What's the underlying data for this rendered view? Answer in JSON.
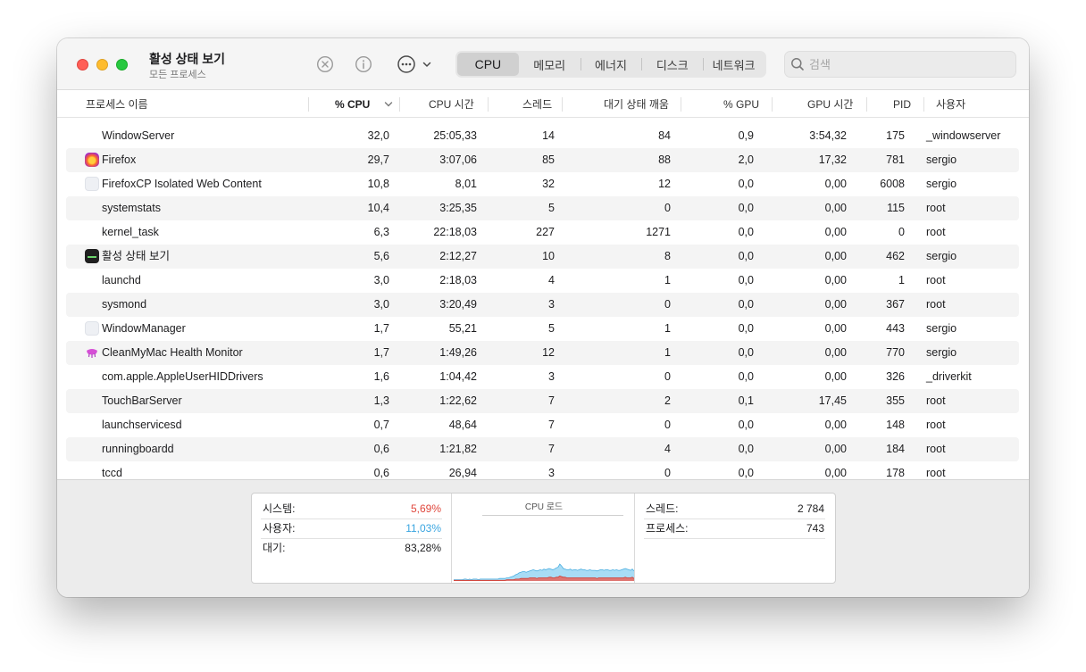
{
  "window": {
    "title": "활성 상태 보기",
    "subtitle": "모든 프로세스"
  },
  "toolbar": {
    "stop_icon": "x-circle-icon",
    "info_icon": "info-circle-icon",
    "more_icon": "ellipsis-circle-icon",
    "tabs": [
      {
        "label": "CPU",
        "active": true
      },
      {
        "label": "메모리",
        "active": false
      },
      {
        "label": "에너지",
        "active": false
      },
      {
        "label": "디스크",
        "active": false
      },
      {
        "label": "네트워크",
        "active": false
      }
    ],
    "search": {
      "placeholder": "검색",
      "value": ""
    }
  },
  "columns": {
    "name": "프로세스 이름",
    "cpu": "% CPU",
    "cpu_time": "CPU 시간",
    "threads": "스레드",
    "idle_wakeups": "대기 상태 깨움",
    "gpu": "% GPU",
    "gpu_time": "GPU 시간",
    "pid": "PID",
    "user": "사용자"
  },
  "processes": [
    {
      "name": "WindowServer",
      "icon": "none",
      "cpu": "32,0",
      "cpu_time": "25:05,33",
      "threads": "14",
      "wakeups": "84",
      "gpu": "0,9",
      "gpu_time": "3:54,32",
      "pid": "175",
      "user": "_windowserver"
    },
    {
      "name": "Firefox",
      "icon": "firefox",
      "cpu": "29,7",
      "cpu_time": "3:07,06",
      "threads": "85",
      "wakeups": "88",
      "gpu": "2,0",
      "gpu_time": "17,32",
      "pid": "781",
      "user": "sergio"
    },
    {
      "name": "FirefoxCP Isolated Web Content",
      "icon": "blank",
      "cpu": "10,8",
      "cpu_time": "8,01",
      "threads": "32",
      "wakeups": "12",
      "gpu": "0,0",
      "gpu_time": "0,00",
      "pid": "6008",
      "user": "sergio"
    },
    {
      "name": "systemstats",
      "icon": "none",
      "cpu": "10,4",
      "cpu_time": "3:25,35",
      "threads": "5",
      "wakeups": "0",
      "gpu": "0,0",
      "gpu_time": "0,00",
      "pid": "115",
      "user": "root"
    },
    {
      "name": "kernel_task",
      "icon": "none",
      "cpu": "6,3",
      "cpu_time": "22:18,03",
      "threads": "227",
      "wakeups": "1271",
      "gpu": "0,0",
      "gpu_time": "0,00",
      "pid": "0",
      "user": "root"
    },
    {
      "name": "활성 상태 보기",
      "icon": "activity-monitor",
      "cpu": "5,6",
      "cpu_time": "2:12,27",
      "threads": "10",
      "wakeups": "8",
      "gpu": "0,0",
      "gpu_time": "0,00",
      "pid": "462",
      "user": "sergio"
    },
    {
      "name": "launchd",
      "icon": "none",
      "cpu": "3,0",
      "cpu_time": "2:18,03",
      "threads": "4",
      "wakeups": "1",
      "gpu": "0,0",
      "gpu_time": "0,00",
      "pid": "1",
      "user": "root"
    },
    {
      "name": "sysmond",
      "icon": "none",
      "cpu": "3,0",
      "cpu_time": "3:20,49",
      "threads": "3",
      "wakeups": "0",
      "gpu": "0,0",
      "gpu_time": "0,00",
      "pid": "367",
      "user": "root"
    },
    {
      "name": "WindowManager",
      "icon": "blank",
      "cpu": "1,7",
      "cpu_time": "55,21",
      "threads": "5",
      "wakeups": "1",
      "gpu": "0,0",
      "gpu_time": "0,00",
      "pid": "443",
      "user": "sergio"
    },
    {
      "name": "CleanMyMac Health Monitor",
      "icon": "cleanmymac",
      "cpu": "1,7",
      "cpu_time": "1:49,26",
      "threads": "12",
      "wakeups": "1",
      "gpu": "0,0",
      "gpu_time": "0,00",
      "pid": "770",
      "user": "sergio"
    },
    {
      "name": "com.apple.AppleUserHIDDrivers",
      "icon": "none",
      "cpu": "1,6",
      "cpu_time": "1:04,42",
      "threads": "3",
      "wakeups": "0",
      "gpu": "0,0",
      "gpu_time": "0,00",
      "pid": "326",
      "user": "_driverkit"
    },
    {
      "name": "TouchBarServer",
      "icon": "none",
      "cpu": "1,3",
      "cpu_time": "1:22,62",
      "threads": "7",
      "wakeups": "2",
      "gpu": "0,1",
      "gpu_time": "17,45",
      "pid": "355",
      "user": "root"
    },
    {
      "name": "launchservicesd",
      "icon": "none",
      "cpu": "0,7",
      "cpu_time": "48,64",
      "threads": "7",
      "wakeups": "0",
      "gpu": "0,0",
      "gpu_time": "0,00",
      "pid": "148",
      "user": "root"
    },
    {
      "name": "runningboardd",
      "icon": "none",
      "cpu": "0,6",
      "cpu_time": "1:21,82",
      "threads": "7",
      "wakeups": "4",
      "gpu": "0,0",
      "gpu_time": "0,00",
      "pid": "184",
      "user": "root"
    },
    {
      "name": "tccd",
      "icon": "none",
      "cpu": "0,6",
      "cpu_time": "26,94",
      "threads": "3",
      "wakeups": "0",
      "gpu": "0,0",
      "gpu_time": "0,00",
      "pid": "178",
      "user": "root"
    }
  ],
  "summary": {
    "system_label": "시스템:",
    "system_value": "5,69%",
    "system_color": "#e0473c",
    "user_label": "사용자:",
    "user_value": "11,03%",
    "user_color": "#3aa5e0",
    "idle_label": "대기:",
    "idle_value": "83,28%",
    "graph_title": "CPU 로드",
    "threads_label": "스레드:",
    "threads_value": "2 784",
    "processes_label": "프로세스:",
    "processes_value": "743"
  },
  "chart_data": {
    "type": "area",
    "series": [
      {
        "values": [
          2,
          2,
          2,
          2,
          2,
          2,
          3,
          3,
          2,
          3,
          2,
          3,
          3,
          3,
          2,
          3,
          3,
          3,
          3,
          3,
          3,
          3,
          3,
          3,
          3,
          3,
          4,
          4,
          4,
          4,
          5,
          5,
          6,
          7,
          8,
          10,
          11,
          13,
          14,
          15,
          15,
          14,
          15,
          16,
          17,
          18,
          17,
          16,
          17,
          18,
          17,
          19,
          18,
          19,
          20,
          19,
          18,
          19,
          21,
          22,
          27,
          24,
          20,
          19,
          18,
          18,
          19,
          17,
          18,
          18,
          17,
          18,
          19,
          18,
          18,
          17,
          17,
          18,
          17,
          17,
          17,
          16,
          17,
          18,
          18,
          17,
          18,
          18,
          17,
          17,
          18,
          17,
          18,
          17,
          17,
          18,
          19,
          20,
          19,
          18,
          17,
          19,
          16
        ]
      },
      {
        "values": [
          1,
          1,
          1,
          1,
          1,
          1,
          1,
          1,
          1,
          1,
          1,
          1,
          1,
          1,
          1,
          1,
          1,
          1,
          1,
          1,
          1,
          1,
          1,
          1,
          1,
          1,
          1,
          1,
          1,
          1,
          2,
          2,
          2,
          2,
          2,
          3,
          3,
          3,
          4,
          4,
          4,
          4,
          4,
          5,
          5,
          5,
          5,
          4,
          5,
          5,
          5,
          5,
          5,
          5,
          6,
          6,
          5,
          5,
          6,
          6,
          8,
          7,
          6,
          6,
          5,
          5,
          5,
          5,
          5,
          5,
          5,
          5,
          5,
          5,
          5,
          5,
          5,
          5,
          5,
          5,
          5,
          4,
          5,
          5,
          5,
          5,
          5,
          5,
          5,
          5,
          5,
          5,
          5,
          5,
          5,
          5,
          5,
          6,
          5,
          5,
          5,
          6,
          4
        ]
      }
    ],
    "colors": [
      "#79c9ef",
      "#e8645a"
    ],
    "ylim": [
      0,
      100
    ]
  }
}
